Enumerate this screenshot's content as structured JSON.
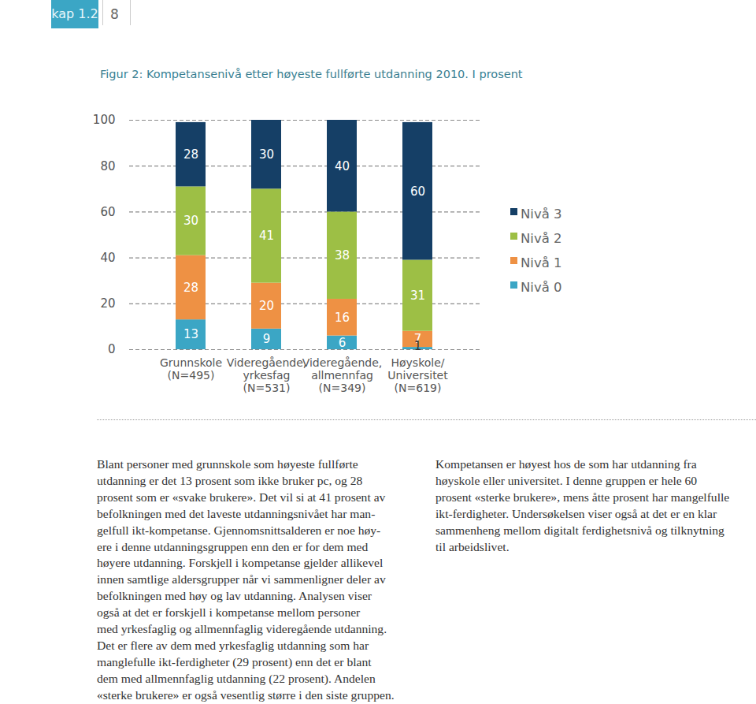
{
  "header": {
    "chapter": "kap 1.2",
    "page": "8"
  },
  "chart_data": {
    "type": "bar",
    "title": "Figur 2: Kompetansenivå etter høyeste fullførte utdanning 2010. I prosent",
    "categories": [
      "Grunnskole\n(N=495)",
      "Videregående,\nyrkesfag\n(N=531)",
      "Videregående,\nallmennfag\n(N=349)",
      "Høyskole/\nUniversitet\n(N=619)"
    ],
    "series": [
      {
        "name": "Nivå 0",
        "color": "#3ba6c5",
        "values": [
          13,
          9,
          6,
          1
        ]
      },
      {
        "name": "Nivå 1",
        "color": "#ee9144",
        "values": [
          28,
          20,
          16,
          7
        ]
      },
      {
        "name": "Nivå 2",
        "color": "#9dbf45",
        "values": [
          30,
          41,
          38,
          31
        ]
      },
      {
        "name": "Nivå 3",
        "color": "#153f66",
        "values": [
          28,
          30,
          40,
          60
        ]
      }
    ],
    "stacked": true,
    "data_labels": true,
    "ylim": [
      0,
      100
    ],
    "yticks": [
      0,
      20,
      40,
      60,
      80,
      100
    ],
    "grid": true,
    "legend": "right"
  },
  "body": {
    "left": [
      "Blant personer med grunnskole som høyeste fullførte",
      "utdanning er det 13 prosent som ikke bruker pc, og 28",
      "prosent som er «svake brukere». Det vil si at 41 prosent av",
      "befolkningen med det laveste utdanningsnivået har man-",
      "gelfull ikt-kompetanse. Gjennomsnittsalderen er noe høy-",
      "ere i denne utdanningsgruppen enn den er for dem med",
      "høyere utdanning. Forskjell i kompetanse gjelder allikevel",
      "innen samtlige aldersgrupper når vi sammenligner deler av",
      "befolkningen med høy og lav utdanning. Analysen viser",
      "også at det er forskjell i kompetanse mellom personer",
      "med yrkesfaglig og allmennfaglig videregående utdanning.",
      "Det er flere av dem med yrkesfaglig utdanning som har",
      "manglefulle ikt-ferdigheter (29 prosent) enn det er blant",
      "dem med allmennfaglig utdanning (22 prosent). Andelen",
      "«sterke brukere» er også vesentlig større i den siste gruppen."
    ],
    "right": [
      "Kompetansen er høyest hos de som har utdanning fra",
      "høyskole eller universitet. I denne gruppen er hele 60",
      "prosent «sterke brukere», mens åtte prosent har mangelfulle",
      "ikt-ferdigheter. Undersøkelsen viser også at det er en klar",
      "sammenheng mellom digitalt ferdighetsnivå og tilknytning",
      "til arbeidslivet."
    ]
  }
}
